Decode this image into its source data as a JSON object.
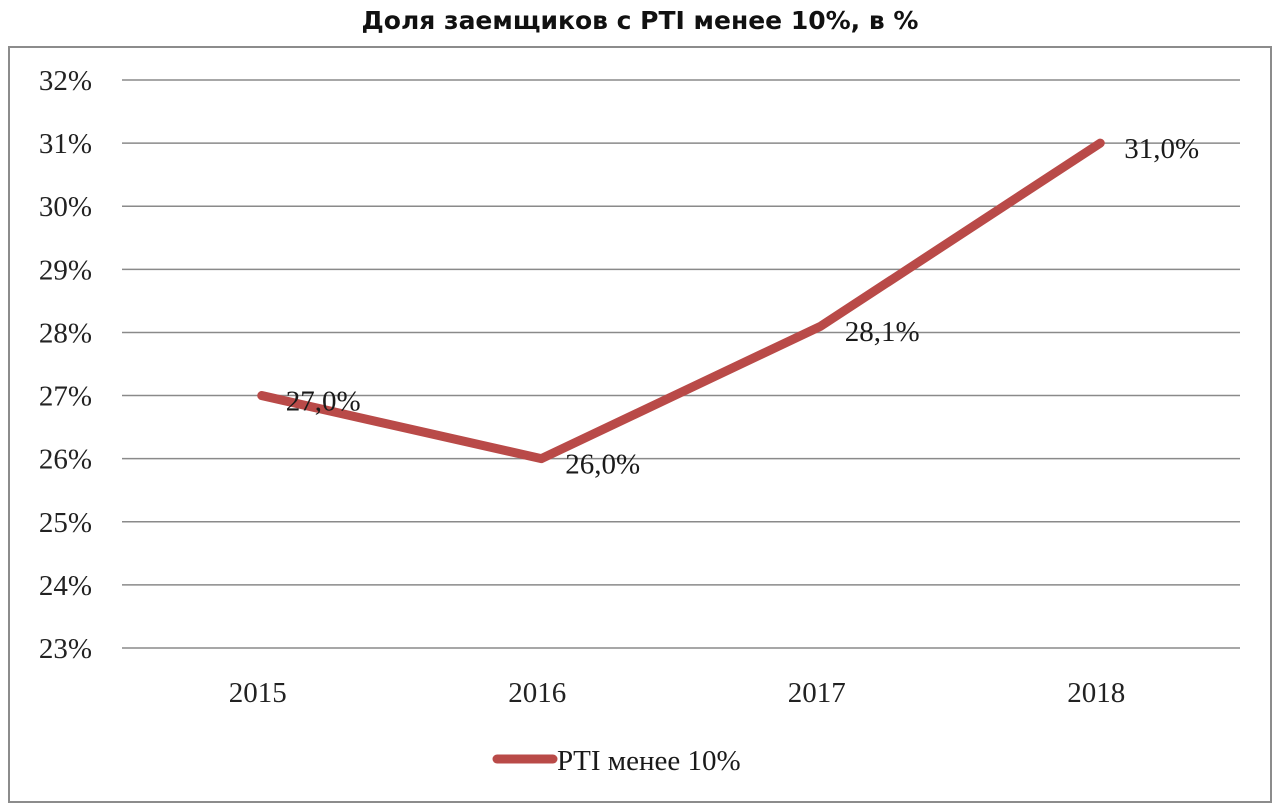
{
  "chart_data": {
    "type": "line",
    "title": "Доля заемщиков с PTI менее 10%, в %",
    "x": [
      "2015",
      "2016",
      "2017",
      "2018"
    ],
    "series": [
      {
        "name": "PTI менее 10%",
        "values": [
          27.0,
          26.0,
          28.1,
          31.0
        ],
        "labels": [
          "27,0%",
          "26,0%",
          "28,1%",
          "31,0%"
        ],
        "color": "#b94a48"
      }
    ],
    "ylim": [
      23,
      32
    ],
    "yticks": [
      "23%",
      "24%",
      "25%",
      "26%",
      "27%",
      "28%",
      "29%",
      "30%",
      "31%",
      "32%"
    ],
    "grid": true,
    "legend": "bottom"
  }
}
